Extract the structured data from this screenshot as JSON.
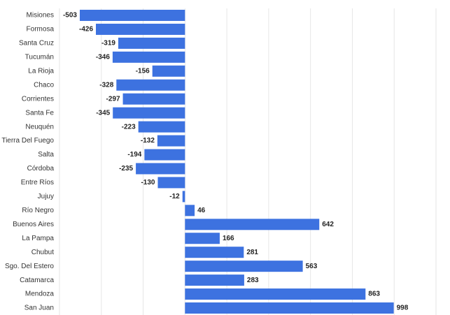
{
  "chart_data": {
    "type": "hbar",
    "categories": [
      "Misiones",
      "Formosa",
      "Santa Cruz",
      "Tucumán",
      "La Rioja",
      "Chaco",
      "Corrientes",
      "Santa Fe",
      "Neuquén",
      "Tierra Del Fuego",
      "Salta",
      "Córdoba",
      "Entre Ríos",
      "Jujuy",
      "Río Negro",
      "Buenos Aires",
      "La Pampa",
      "Chubut",
      "Sgo. Del Estero",
      "Catamarca",
      "Mendoza",
      "San Juan"
    ],
    "values": [
      -503,
      -426,
      -319,
      -346,
      -156,
      -328,
      -297,
      -345,
      -223,
      -132,
      -194,
      -235,
      -130,
      -12,
      46,
      642,
      166,
      281,
      563,
      283,
      863,
      998
    ],
    "color": "#3d72e0",
    "xlim": [
      -600,
      1200
    ],
    "xticks": [
      -600,
      -400,
      -200,
      0,
      200,
      400,
      600,
      800,
      1000,
      1200
    ],
    "grid": true
  }
}
